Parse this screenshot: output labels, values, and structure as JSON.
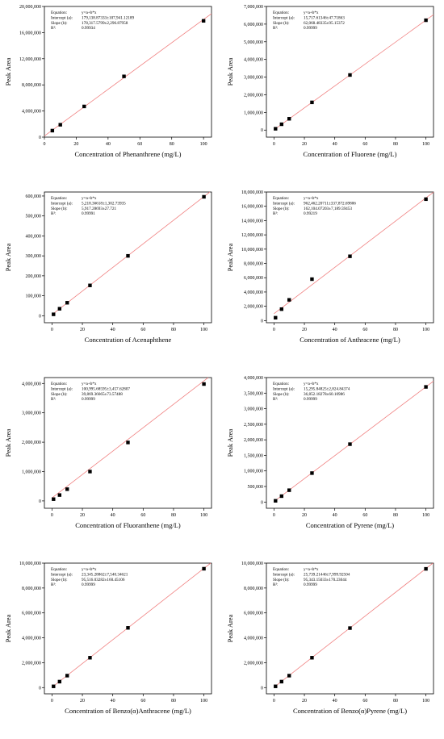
{
  "chart_data": [
    {
      "type": "scatter",
      "xlabel": "Concentration of Phenanthrene (mg/L)",
      "ylabel": "Peak Area",
      "xlim": [
        0,
        105
      ],
      "ylim": [
        0,
        20000000
      ],
      "xticks": [
        0,
        20,
        40,
        60,
        80,
        100
      ],
      "yticks": [
        0,
        4000000,
        8000000,
        12000000,
        16000000,
        20000000
      ],
      "ytick_labels": [
        "0",
        "4,000,000",
        "8,000,000",
        "12,000,000",
        "16,000,000",
        "20,000,000"
      ],
      "x": [
        5,
        10,
        25,
        50,
        100
      ],
      "y": [
        1000000,
        1900000,
        4700000,
        9300000,
        17800000
      ],
      "fit": {
        "intercept": 179138.87,
        "slope": 178317.58
      },
      "legend": [
        {
          "label": "Equation:",
          "value": "y=a+b*x"
        },
        {
          "label": "Intercept (a):",
          "value": "179,138.87333±107,941.12189"
        },
        {
          "label": "Slope (b):",
          "value": "178,317.5799±2,296.87958"
        },
        {
          "label": "R²:",
          "value": "0.99934"
        }
      ]
    },
    {
      "type": "scatter",
      "xlabel": "Concentration of Fluorene (mg/L)",
      "ylabel": "Peak Area",
      "xlim": [
        -5,
        105
      ],
      "ylim": [
        -400000,
        7000000
      ],
      "xticks": [
        0,
        20,
        40,
        60,
        80,
        100
      ],
      "yticks": [
        0,
        1000000,
        2000000,
        3000000,
        4000000,
        5000000,
        6000000,
        7000000
      ],
      "ytick_labels": [
        "0",
        "1,000,000",
        "2,000,000",
        "3,000,000",
        "4,000,000",
        "5,000,000",
        "6,000,000",
        "7,000,000"
      ],
      "x": [
        1,
        5,
        10,
        25,
        50,
        100
      ],
      "y": [
        75000,
        330000,
        640000,
        1570000,
        3120000,
        6220000
      ],
      "fit": {
        "intercept": 15717.61,
        "slope": 62068.48
      },
      "legend": [
        {
          "label": "Equation:",
          "value": "y=a+b*x"
        },
        {
          "label": "Intercept (a):",
          "value": "15,717.61346±47.71863"
        },
        {
          "label": "Slope (b):",
          "value": "62,068.48335±95.15372"
        },
        {
          "label": "R²:",
          "value": "0.99999"
        }
      ]
    },
    {
      "type": "scatter",
      "xlabel": "Concentration of Acenaphthene",
      "ylabel": "Peak Area",
      "xlim": [
        -5,
        105
      ],
      "ylim": [
        -35000,
        620000
      ],
      "xticks": [
        0,
        20,
        40,
        60,
        80,
        100
      ],
      "yticks": [
        0,
        100000,
        200000,
        300000,
        400000,
        500000,
        600000
      ],
      "ytick_labels": [
        "0",
        "100,000",
        "200,000",
        "300,000",
        "400,000",
        "500,000",
        "600,000"
      ],
      "x": [
        1,
        5,
        10,
        25,
        50,
        100
      ],
      "y": [
        7000,
        35000,
        65000,
        152000,
        300000,
        596000
      ],
      "fit": {
        "intercept": 5218.37,
        "slope": 5917.29
      },
      "legend": [
        {
          "label": "Equation:",
          "value": "y=a+b*x"
        },
        {
          "label": "Intercept (a):",
          "value": "5,218.36618±1,302.73935"
        },
        {
          "label": "Slope (b):",
          "value": "5,917.28693±27.721"
        },
        {
          "label": "R²:",
          "value": "0.99991"
        }
      ]
    },
    {
      "type": "scatter",
      "xlabel": "Concentration of Anthracene (mg/L)",
      "ylabel": "Peak Area",
      "xlim": [
        -5,
        105
      ],
      "ylim": [
        -300000,
        18000000
      ],
      "xticks": [
        0,
        20,
        40,
        60,
        80,
        100
      ],
      "yticks": [
        0,
        2000000,
        4000000,
        6000000,
        8000000,
        10000000,
        12000000,
        14000000,
        16000000,
        18000000
      ],
      "ytick_labels": [
        "0",
        "2,000,000",
        "4,000,000",
        "6,000,000",
        "8,000,000",
        "10,000,000",
        "12,000,000",
        "14,000,000",
        "16,000,000",
        "18,000,000"
      ],
      "x": [
        1,
        5,
        10,
        25,
        50,
        100
      ],
      "y": [
        400000,
        1600000,
        2900000,
        5800000,
        9000000,
        17000000
      ],
      "fit": {
        "intercept": 962462.21,
        "slope": 162104.07
      },
      "legend": [
        {
          "label": "Equation:",
          "value": "y=a+b*x"
        },
        {
          "label": "Intercept (a):",
          "value": "962,462.20711±337,872.69806"
        },
        {
          "label": "Slope (b):",
          "value": "162,104.07203±7,189.59453"
        },
        {
          "label": "R²:",
          "value": "0.99219"
        }
      ]
    },
    {
      "type": "scatter",
      "xlabel": "Concentration of Fluoranthene (mg/L)",
      "ylabel": "Peak Area",
      "xlim": [
        -5,
        105
      ],
      "ylim": [
        -250000,
        4200000
      ],
      "xticks": [
        0,
        20,
        40,
        60,
        80,
        100
      ],
      "yticks": [
        0,
        1000000,
        2000000,
        3000000,
        4000000
      ],
      "ytick_labels": [
        "0",
        "1,000,000",
        "2,000,000",
        "3,000,000",
        "4,000,000"
      ],
      "x": [
        1,
        5,
        10,
        25,
        50,
        100
      ],
      "y": [
        60000,
        200000,
        400000,
        1000000,
        1990000,
        3980000
      ],
      "fit": {
        "intercept": 100995.69,
        "slope": 39869.37
      },
      "legend": [
        {
          "label": "Equation:",
          "value": "y=a+b*x"
        },
        {
          "label": "Intercept (a):",
          "value": "100,995.68595±3,457.62807"
        },
        {
          "label": "Slope (b):",
          "value": "39,869.36665±73.57488"
        },
        {
          "label": "R²:",
          "value": "0.99999"
        }
      ]
    },
    {
      "type": "scatter",
      "xlabel": "Concentration of Pyrene (mg/L)",
      "ylabel": "Peak Area",
      "xlim": [
        -5,
        105
      ],
      "ylim": [
        -200000,
        4000000
      ],
      "xticks": [
        0,
        20,
        40,
        60,
        80,
        100
      ],
      "yticks": [
        0,
        500000,
        1000000,
        1500000,
        2000000,
        2500000,
        3000000,
        3500000,
        4000000
      ],
      "ytick_labels": [
        "0",
        "500,000",
        "1,000,000",
        "1,500,000",
        "2,000,000",
        "2,500,000",
        "3,000,000",
        "3,500,000",
        "4,000,000"
      ],
      "x": [
        1,
        5,
        10,
        25,
        50,
        100
      ],
      "y": [
        40000,
        190000,
        380000,
        930000,
        1860000,
        3700000
      ],
      "fit": {
        "intercept": 15295.85,
        "slope": 36852.18
      },
      "legend": [
        {
          "label": "Equation:",
          "value": "y=a+b*x"
        },
        {
          "label": "Intercept (a):",
          "value": "15,295.84825±2,824.84374"
        },
        {
          "label": "Slope (b):",
          "value": "36,852.18278±60.10986"
        },
        {
          "label": "R²:",
          "value": "0.99999"
        }
      ]
    },
    {
      "type": "scatter",
      "xlabel": "Concentration of Benzo(α)Anthracene (mg/L)",
      "ylabel": "Peak Area",
      "xlim": [
        -5,
        105
      ],
      "ylim": [
        -500000,
        10000000
      ],
      "xticks": [
        0,
        20,
        40,
        60,
        80,
        100
      ],
      "yticks": [
        0,
        2000000,
        4000000,
        6000000,
        8000000,
        10000000
      ],
      "ytick_labels": [
        "0",
        "2,000,000",
        "4,000,000",
        "6,000,000",
        "8,000,000",
        "10,000,000"
      ],
      "x": [
        1,
        5,
        10,
        25,
        50,
        100
      ],
      "y": [
        100000,
        480000,
        960000,
        2400000,
        4800000,
        9550000
      ],
      "fit": {
        "intercept": 23345.29,
        "slope": 95516.03
      },
      "legend": [
        {
          "label": "Equation:",
          "value": "y=a+b*x"
        },
        {
          "label": "Intercept (a):",
          "value": "23,345.28862±7,540.34621"
        },
        {
          "label": "Slope (b):",
          "value": "95,516.03282±160.45106"
        },
        {
          "label": "R²:",
          "value": "0.99999"
        }
      ]
    },
    {
      "type": "scatter",
      "xlabel": "Concentration of Benzo(α)Pyrene (mg/L)",
      "ylabel": "Peak Area",
      "xlim": [
        -5,
        105
      ],
      "ylim": [
        -500000,
        10000000
      ],
      "xticks": [
        0,
        20,
        40,
        60,
        80,
        100
      ],
      "yticks": [
        0,
        2000000,
        4000000,
        6000000,
        8000000,
        10000000
      ],
      "ytick_labels": [
        "0",
        "2,000,000",
        "4,000,000",
        "6,000,000",
        "8,000,000",
        "10,000,000"
      ],
      "x": [
        1,
        5,
        10,
        25,
        50,
        100
      ],
      "y": [
        100000,
        480000,
        960000,
        2400000,
        4780000,
        9540000
      ],
      "fit": {
        "intercept": 25739.21,
        "slope": 95343.15
      },
      "legend": [
        {
          "label": "Equation:",
          "value": "y=a+b*x"
        },
        {
          "label": "Intercept (a):",
          "value": "25,739.21446±7,999.92504"
        },
        {
          "label": "Slope (b):",
          "value": "95,343.15033±170.23044"
        },
        {
          "label": "R²:",
          "value": "0.99999"
        }
      ]
    }
  ],
  "colors": {
    "axis": "#000000",
    "fit_line": "#f08080",
    "marker": "#000000"
  }
}
